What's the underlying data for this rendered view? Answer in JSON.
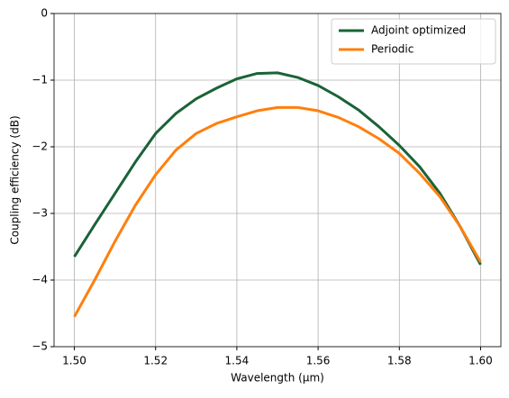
{
  "chart_data": {
    "type": "line",
    "xlabel": "Wavelength (μm)",
    "ylabel": "Coupling efficiency (dB)",
    "x": [
      1.5,
      1.505,
      1.51,
      1.515,
      1.52,
      1.525,
      1.53,
      1.535,
      1.54,
      1.545,
      1.55,
      1.555,
      1.56,
      1.565,
      1.57,
      1.575,
      1.58,
      1.585,
      1.59,
      1.595,
      1.6
    ],
    "series": [
      {
        "name": "Adjoint optimized",
        "color": "#1a6336",
        "values": [
          -3.65,
          -3.17,
          -2.7,
          -2.23,
          -1.8,
          -1.5,
          -1.28,
          -1.12,
          -0.98,
          -0.9,
          -0.89,
          -0.96,
          -1.08,
          -1.25,
          -1.45,
          -1.7,
          -1.98,
          -2.3,
          -2.7,
          -3.2,
          -3.77
        ]
      },
      {
        "name": "Periodic",
        "color": "#ff7f0e",
        "values": [
          -4.55,
          -4.0,
          -3.42,
          -2.88,
          -2.42,
          -2.05,
          -1.8,
          -1.65,
          -1.55,
          -1.46,
          -1.41,
          -1.41,
          -1.46,
          -1.56,
          -1.7,
          -1.88,
          -2.1,
          -2.4,
          -2.75,
          -3.2,
          -3.73
        ]
      }
    ],
    "xlim": [
      1.495,
      1.605
    ],
    "ylim": [
      -5,
      0
    ],
    "xticks": [
      {
        "value": 1.5,
        "label": "1.50"
      },
      1.52,
      1.54,
      1.56,
      1.58,
      {
        "value": 1.6,
        "label": "1.60"
      }
    ],
    "yticks": [
      {
        "value": -5,
        "label": "−5"
      },
      {
        "value": -4,
        "label": "−4"
      },
      {
        "value": -3,
        "label": "−3"
      },
      {
        "value": -2,
        "label": "−2"
      },
      {
        "value": -1,
        "label": "−1"
      },
      0
    ],
    "grid": true,
    "legend": "upper right"
  }
}
